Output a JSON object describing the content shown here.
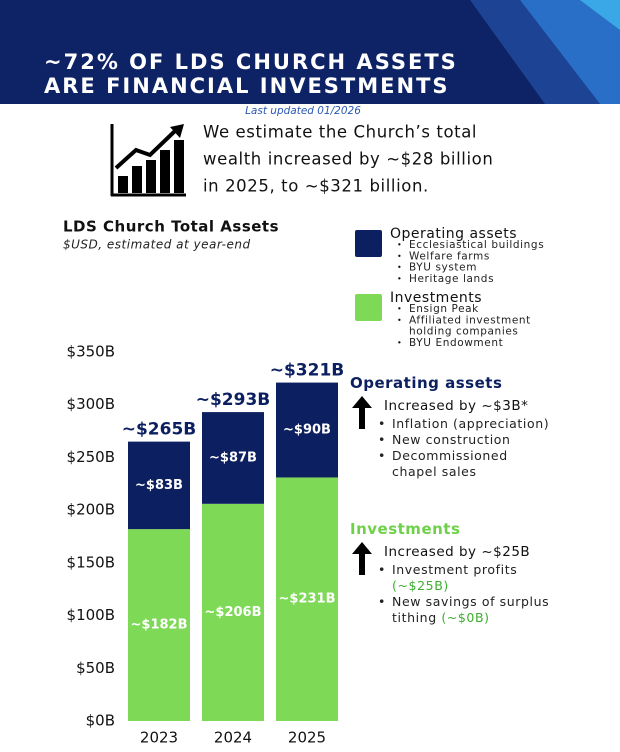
{
  "header": {
    "title_lines": [
      "~72% OF LDS CHURCH ASSETS",
      "ARE FINANCIAL INVESTMENTS"
    ],
    "updated": "Last updated 01/2026"
  },
  "intro": {
    "lines": [
      "We estimate the Church’s total",
      "wealth increased by ~$28 billion",
      "in 2025, to ~$321 billion."
    ]
  },
  "chart_data": {
    "type": "stacked_bar",
    "title": "LDS Church Total Assets",
    "subtitle": "$USD, estimated at year-end",
    "categories": [
      "2023",
      "2024",
      "2025"
    ],
    "series": [
      {
        "name": "Investments",
        "color": "#7ed957",
        "values": [
          182,
          206,
          231
        ],
        "value_labels": [
          "~$182B",
          "~$206B",
          "~$231B"
        ],
        "legend_items": [
          [
            "Ensign Peak"
          ],
          [
            "Affiliated investment",
            "holding companies"
          ],
          [
            "BYU Endowment"
          ]
        ]
      },
      {
        "name": "Operating assets",
        "color": "#0c1f60",
        "values": [
          83,
          87,
          90
        ],
        "value_labels": [
          "~$83B",
          "~$87B",
          "~$90B"
        ],
        "legend_items": [
          [
            "Ecclesiastical buildings"
          ],
          [
            "Welfare farms"
          ],
          [
            "BYU system"
          ],
          [
            "Heritage lands"
          ]
        ]
      }
    ],
    "totals": [
      265,
      293,
      321
    ],
    "total_labels": [
      "~$265B",
      "~$293B",
      "~$321B"
    ],
    "ylim": [
      0,
      350
    ],
    "yticks": [
      {
        "value": 0,
        "label": "$0B"
      },
      {
        "value": 50,
        "label": "$50B"
      },
      {
        "value": 100,
        "label": "$100B"
      },
      {
        "value": 150,
        "label": "$150B"
      },
      {
        "value": 200,
        "label": "$200B"
      },
      {
        "value": 250,
        "label": "$250B"
      },
      {
        "value": 300,
        "label": "$300B"
      },
      {
        "value": 350,
        "label": "$350B"
      }
    ],
    "grid": false
  },
  "notes": [
    {
      "title": "Operating assets",
      "color": "#0c1f60",
      "change": "Increased by ~$3B*",
      "items": [
        {
          "lines": [
            "Inflation (appreciation)"
          ]
        },
        {
          "lines": [
            "New construction"
          ]
        },
        {
          "lines": [
            "Decommissioned",
            "chapel sales"
          ]
        }
      ]
    },
    {
      "title": "Investments",
      "color": "#6fd04a",
      "change": "Increased by ~$25B",
      "items": [
        {
          "lines": [
            "Investment profits"
          ],
          "amount": "(~$25B)"
        },
        {
          "lines": [
            "New savings of surplus",
            "tithing"
          ],
          "amount": "(~$0B)"
        }
      ]
    }
  ]
}
